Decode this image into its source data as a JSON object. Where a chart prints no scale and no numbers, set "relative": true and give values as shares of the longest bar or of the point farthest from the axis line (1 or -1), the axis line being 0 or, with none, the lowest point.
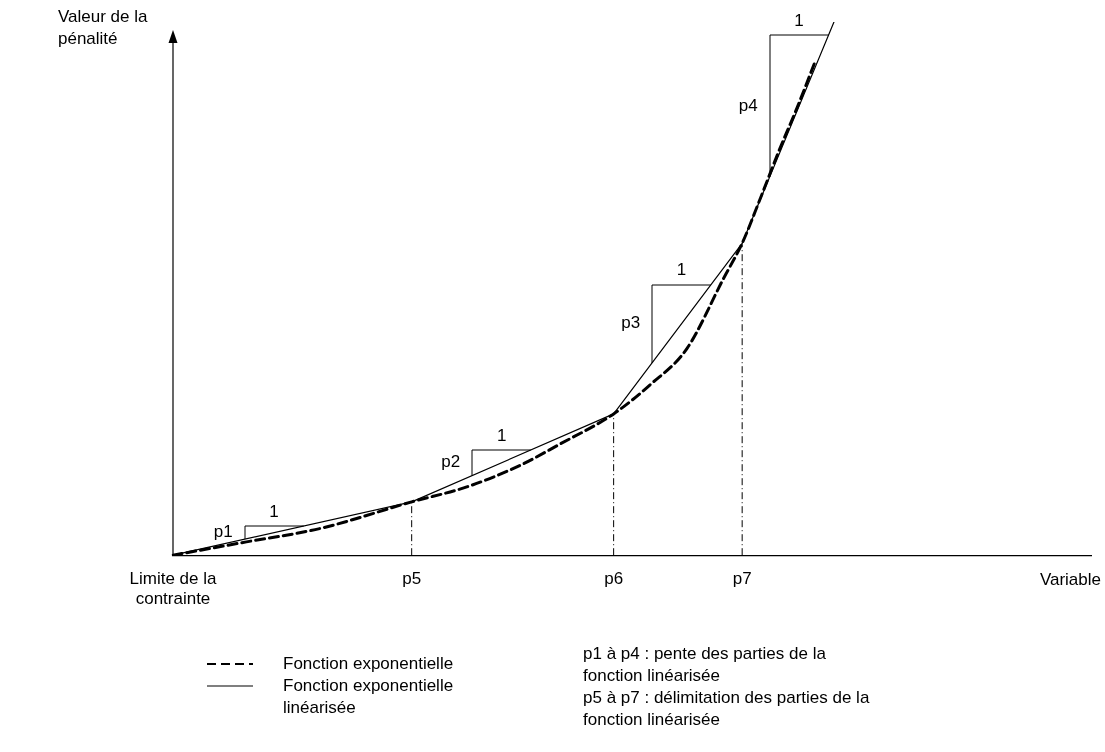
{
  "chart_data": {
    "type": "line",
    "relative": true,
    "ylabel": "Valeur de la pénalité",
    "xlabel": "Variable",
    "categories": [
      "Limite de la contrainte",
      null,
      null,
      null,
      null,
      null,
      null,
      null,
      null,
      null,
      null,
      null,
      null,
      "p5",
      null,
      null,
      null,
      null,
      null,
      null,
      null,
      null,
      null,
      null,
      "p6",
      null,
      null,
      null,
      null,
      null,
      null,
      "p7",
      null,
      null,
      null,
      null,
      null,
      null,
      null,
      null,
      null,
      null,
      null,
      null,
      null,
      null,
      null,
      null,
      null,
      null,
      null
    ],
    "series": [
      {
        "name": "Fonction exponentielle",
        "color": "#000000",
        "line_style": "dashed",
        "values": [
          0,
          null,
          null,
          null,
          0.025,
          null,
          null,
          null,
          0.05,
          null,
          null,
          null,
          null,
          0.1,
          null,
          null,
          0.128,
          null,
          null,
          0.17,
          null,
          0.207,
          null,
          null,
          0.265,
          null,
          0.32,
          null,
          0.388,
          null,
          0.52,
          0.585,
          0.67,
          0.758,
          0.84,
          0.928,
          null,
          null,
          null,
          null,
          null,
          null,
          null,
          null,
          null,
          null,
          null,
          null,
          null,
          null,
          null
        ]
      },
      {
        "name": "Fonction exponentielle linéarisée",
        "color": "#000000",
        "line_style": "solid",
        "values": [
          0,
          null,
          null,
          null,
          null,
          null,
          null,
          null,
          null,
          null,
          null,
          null,
          null,
          0.1,
          null,
          null,
          null,
          null,
          null,
          null,
          null,
          null,
          null,
          null,
          0.265,
          null,
          null,
          null,
          null,
          null,
          null,
          0.585,
          null,
          null,
          null,
          null,
          1,
          null,
          null,
          null,
          null,
          null,
          null,
          null,
          null,
          null,
          null,
          null,
          null,
          null,
          null
        ]
      }
    ],
    "ref_lines": [
      {
        "axis": "x",
        "value": "p5",
        "line_style": "dashed"
      },
      {
        "axis": "x",
        "value": "p6",
        "line_style": "dashed"
      },
      {
        "axis": "x",
        "value": "p7",
        "line_style": "dashed"
      }
    ],
    "annotations": [
      "p1",
      "1",
      "p2",
      "1",
      "p3",
      "1",
      "p4",
      "1",
      "p1 à p4 : pente des parties de la fonction linéarisée",
      "p5 à p7 : délimitation des parties de la fonction linéarisée"
    ],
    "legend": "bottom left"
  }
}
